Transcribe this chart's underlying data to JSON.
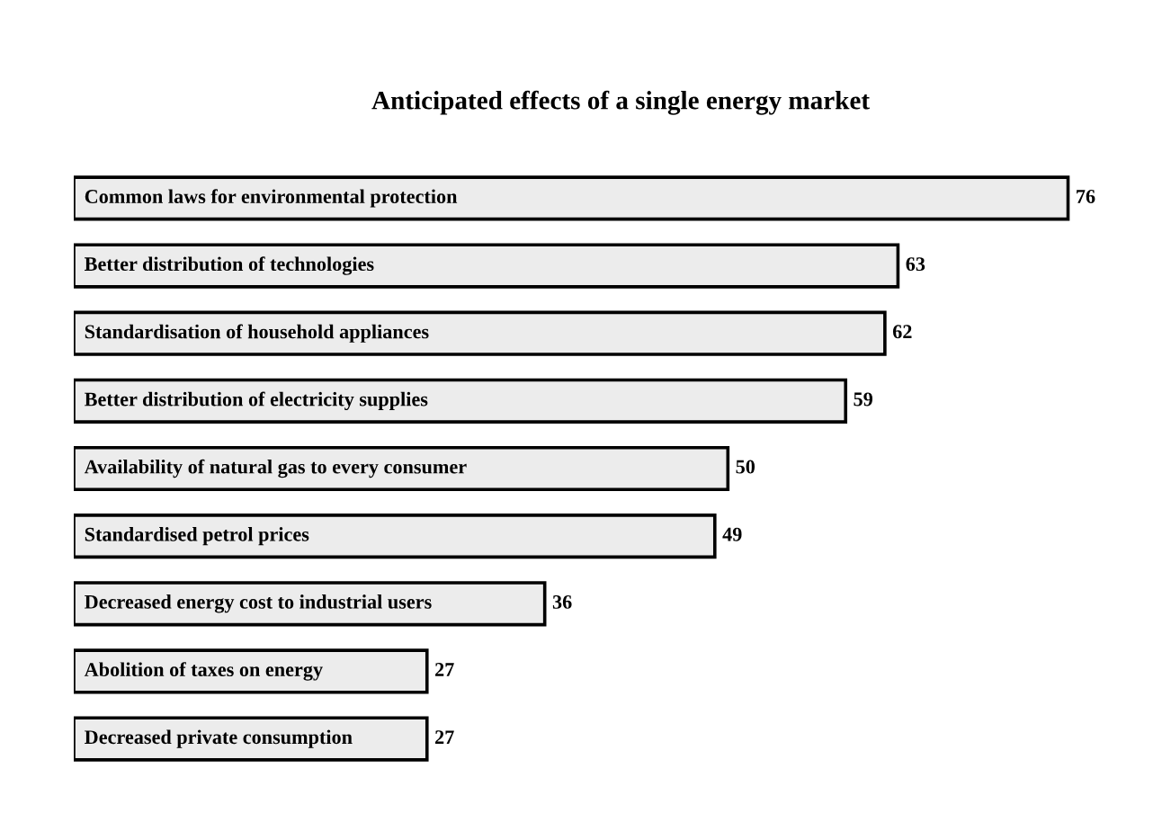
{
  "chart_data": {
    "type": "bar",
    "orientation": "horizontal",
    "title": "Anticipated effects of a single energy market",
    "categories": [
      "Common laws for environmental protection",
      "Better distribution of technologies",
      "Standardisation of household appliances",
      "Better distribution of electricity supplies",
      "Availability of natural gas to every consumer",
      "Standardised petrol prices",
      "Decreased energy cost to industrial users",
      "Abolition of taxes on energy",
      "Decreased private consumption"
    ],
    "values": [
      76,
      63,
      62,
      59,
      50,
      49,
      36,
      27,
      27
    ],
    "color": "#ececec",
    "data_labels": true
  }
}
